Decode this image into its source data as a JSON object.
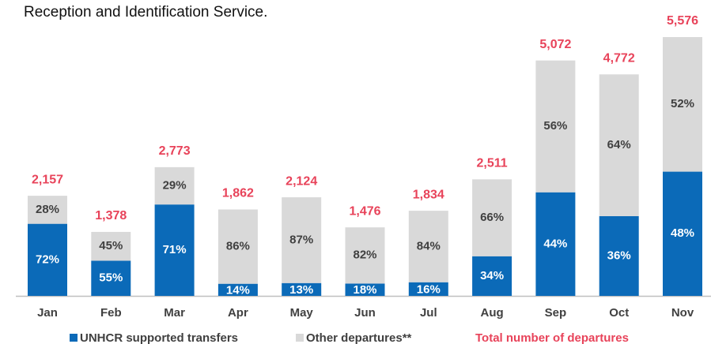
{
  "chart_data": {
    "type": "bar",
    "title": "Reception and Identification Service.",
    "categories": [
      "Jan",
      "Feb",
      "Mar",
      "Apr",
      "May",
      "Jun",
      "Jul",
      "Aug",
      "Sep",
      "Oct",
      "Nov"
    ],
    "stacked": true,
    "series": [
      {
        "name": "UNHCR supported transfers",
        "color": "#0b6ab8",
        "values": [
          72,
          55,
          71,
          14,
          13,
          18,
          16,
          34,
          44,
          36,
          48
        ],
        "value_labels": [
          "72%",
          "55%",
          "71%",
          "14%",
          "13%",
          "18%",
          "16%",
          "34%",
          "44%",
          "36%",
          "48%"
        ]
      },
      {
        "name": "Other departures**",
        "color": "#d9d9d9",
        "values": [
          28,
          45,
          29,
          86,
          87,
          82,
          84,
          66,
          56,
          64,
          52
        ],
        "value_labels": [
          "28%",
          "45%",
          "29%",
          "86%",
          "87%",
          "82%",
          "84%",
          "66%",
          "56%",
          "64%",
          "52%"
        ]
      }
    ],
    "totals": {
      "name": "Total number of departures",
      "color": "#e8435a",
      "values": [
        2157,
        1378,
        2773,
        1862,
        2124,
        1476,
        1834,
        2511,
        5072,
        4772,
        5576
      ],
      "value_labels": [
        "2,157",
        "1,378",
        "2,773",
        "1,862",
        "2,124",
        "1,476",
        "1,834",
        "2,511",
        "5,072",
        "4,772",
        "5,576"
      ]
    }
  }
}
